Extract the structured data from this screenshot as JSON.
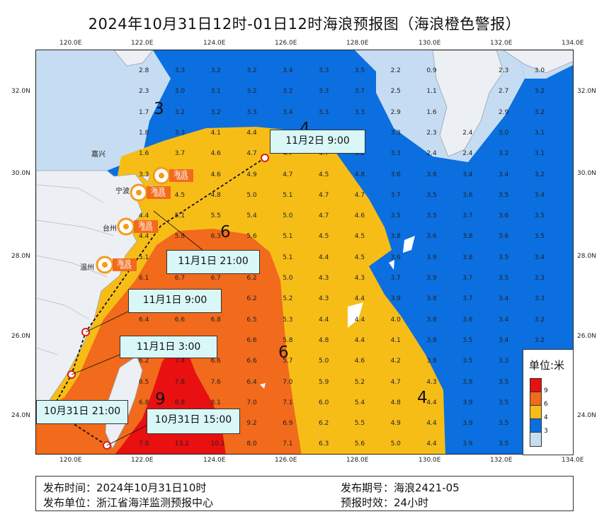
{
  "title": "2024年10月31日12时-01日12时海浪预报图（海浪橙色警报）",
  "map": {
    "x_ticks": [
      "120.0E",
      "122.0E",
      "124.0E",
      "126.0E",
      "128.0E",
      "130.0E",
      "132.0E",
      "134.0E"
    ],
    "y_ticks": [
      "32.0N",
      "30.0N",
      "28.0N",
      "26.0N",
      "24.0N"
    ],
    "place_names": [
      "嘉兴",
      "宁波",
      "台州",
      "温州"
    ],
    "badge_text": "海浪",
    "badge_sub": "WAVE",
    "zone_labels": [
      "3",
      "4",
      "6",
      "6",
      "4",
      "9"
    ],
    "wave_grid": [
      [
        "2.8",
        "3.3",
        "3.2",
        "3.2",
        "3.4",
        "3.3",
        "3.5",
        "2.2",
        "0.9",
        "",
        "2.3",
        "3.0"
      ],
      [
        "2.3",
        "3.0",
        "3.1",
        "3.2",
        "3.2",
        "3.3",
        "3.7",
        "2.5",
        "1.1",
        "",
        "2.7",
        "3.2"
      ],
      [
        "1.7",
        "3.2",
        "3.2",
        "3.3",
        "3.4",
        "3.3",
        "3.3",
        "2.9",
        "1.6",
        "",
        "2.9",
        "3.2"
      ],
      [
        "1.8",
        "3.3",
        "4.1",
        "4.4",
        "",
        "",
        "",
        "3.3",
        "2.3",
        "2.4",
        "3.0",
        "3.1"
      ],
      [
        "1.6",
        "3.7",
        "4.6",
        "4.7",
        "4.7",
        "4.7",
        "4.2",
        "3.3",
        "2.4",
        "2.4",
        "3.2",
        "3.1"
      ],
      [
        "3.3",
        "4.0",
        "4.6",
        "4.9",
        "4.7",
        "4.5",
        "4.8",
        "3.6",
        "3.8",
        "3.4",
        "3.4",
        "3.2"
      ],
      [
        "",
        "4.5",
        "4.8",
        "5.0",
        "5.1",
        "4.7",
        "4.7",
        "3.7",
        "3.5",
        "3.6",
        "3.5",
        "3.4"
      ],
      [
        "4.4",
        "5.1",
        "5.5",
        "5.4",
        "5.0",
        "4.7",
        "4.6",
        "3.5",
        "3.5",
        "3.7",
        "3.6",
        "3.5"
      ],
      [
        "4.4",
        "5.8",
        "6.3",
        "5.6",
        "5.1",
        "4.5",
        "4.5",
        "3.8",
        "3.6",
        "3.8",
        "3.6",
        "3.5"
      ],
      [
        "5.1",
        "6.4",
        "",
        "",
        "5.1",
        "4.4",
        "4.5",
        "3.6",
        "3.9",
        "3.8",
        "3.5",
        "3.4"
      ],
      [
        "6.1",
        "6.7",
        "6.7",
        "6.2",
        "5.0",
        "4.3",
        "4.3",
        "3.7",
        "3.9",
        "3.7",
        "3.5",
        "3.3"
      ],
      [
        "5.9",
        "",
        "",
        "6.2",
        "5.2",
        "4.3",
        "4.4",
        "3.9",
        "3.8",
        "3.7",
        "3.4",
        "3.3"
      ],
      [
        "6.4",
        "6.6",
        "6.8",
        "6.5",
        "5.3",
        "4.4",
        "4.4",
        "4.0",
        "3.8",
        "3.6",
        "3.4",
        "3.2"
      ],
      [
        "",
        "",
        "",
        "6.6",
        "5.8",
        "4.8",
        "4.4",
        "4.1",
        "3.8",
        "3.5",
        "3.4",
        "3.2"
      ],
      [
        "6.2",
        "7.4",
        "6.6",
        "6.6",
        "5.7",
        "5.0",
        "4.6",
        "4.2",
        "3.8",
        "3.5",
        "3.3",
        ""
      ],
      [
        "6.5",
        "7.8",
        "7.6",
        "6.4",
        "7.0",
        "5.9",
        "5.2",
        "4.7",
        "4.3",
        "3.9",
        "3.5",
        "3.3"
      ],
      [
        "6.8",
        "6.8",
        "8.1",
        "7.0",
        "7.1",
        "6.0",
        "5.4",
        "4.8",
        "4.4",
        "3.9",
        "3.5",
        "3.3"
      ],
      [
        "",
        "",
        "",
        "9.2",
        "6.9",
        "6.2",
        "5.5",
        "4.9",
        "4.4",
        "3.9",
        "3.5",
        "3.2"
      ],
      [
        "7.8",
        "13.2",
        "10.1",
        "8.0",
        "7.1",
        "6.3",
        "5.6",
        "5.0",
        "4.4",
        "3.9",
        "3.5",
        "3.2"
      ]
    ]
  },
  "forecasts": [
    {
      "time": "11月2日 9:00"
    },
    {
      "time": "11月1日 21:00"
    },
    {
      "time": "11月1日 9:00"
    },
    {
      "time": "11月1日 3:00"
    },
    {
      "time": "10月31日 21:00"
    },
    {
      "time": "10月31日 15:00"
    }
  ],
  "legend": {
    "title": "单位:米",
    "levels": [
      {
        "label": "9",
        "color": "#e81010"
      },
      {
        "label": "6",
        "color": "#f26a1b"
      },
      {
        "label": "4",
        "color": "#f7bd17"
      },
      {
        "label": "3",
        "color": "#0b6fe0"
      },
      {
        "label": "",
        "color": "#c6dcf2"
      }
    ]
  },
  "info": {
    "publish_time_label": "发布时间：",
    "publish_time": "2024年10月31日10时",
    "publisher_label": "发布单位：",
    "publisher": "浙江省海洋监测预报中心",
    "issue_label": "发布期号：",
    "issue": "海浪2421-05",
    "validity_label": "预报时效：",
    "validity": "24小时"
  }
}
